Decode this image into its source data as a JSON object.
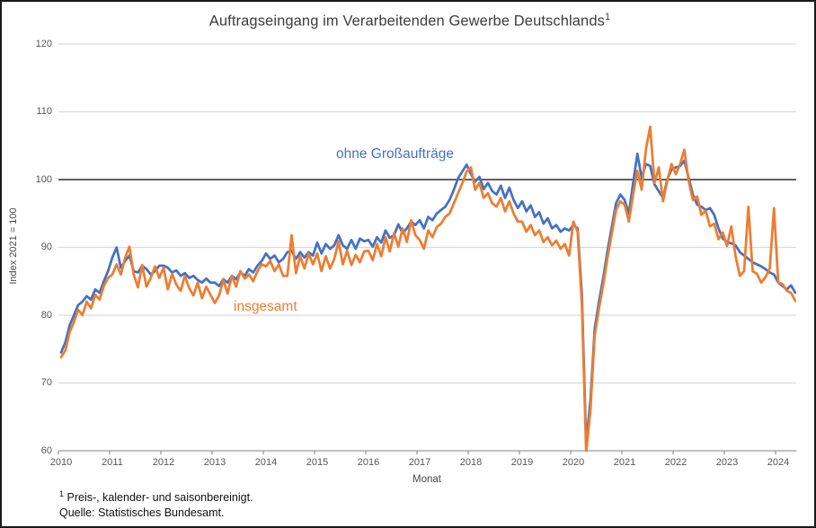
{
  "figure": {
    "title_text": "Auftragseingang im Verarbeitenden Gewerbe Deutschlands",
    "title_sup": "1",
    "footnote1_sup": "1",
    "footnote1_text": " Preis-, kalender- und saisonbereinigt.",
    "footnote2_text": "Quelle: Statistisches Bundesamt."
  },
  "colors": {
    "series_blue": "#4472C4",
    "series_orange": "#ED7D31",
    "gridline": "#DADADA",
    "highlight_gridline": "#000000",
    "axis": "#9B9B9B",
    "tick_text": "#555555",
    "title_text": "#3D3D3D"
  },
  "chart_data": {
    "type": "line",
    "title": "Auftragseingang im Verarbeitenden Gewerbe Deutschlands¹",
    "xlabel": "Monat",
    "ylabel": "Index 2021 = 100",
    "ylim": [
      60,
      120
    ],
    "y_ticks": [
      60,
      70,
      80,
      90,
      100,
      110,
      120
    ],
    "highlight_gridline_at": 100,
    "grid": "horizontal",
    "x_range": "2010-01 to 2024-05",
    "frequency": "monthly",
    "x_tick_labels": [
      "2010",
      "2011",
      "2012",
      "2013",
      "2014",
      "2015",
      "2016",
      "2017",
      "2018",
      "2019",
      "2020",
      "2021",
      "2022",
      "2023",
      "2024"
    ],
    "annotations": [
      {
        "text": "ohne Großaufträge",
        "color": "#4472C4",
        "series": "ohne Großaufträge"
      },
      {
        "text": "insgesamt",
        "color": "#ED7D31",
        "series": "insgesamt"
      }
    ],
    "series": [
      {
        "name": "ohne Großaufträge",
        "color": "#4472C4",
        "values": [
          74.5,
          76.0,
          78.5,
          80.0,
          81.5,
          82.0,
          82.8,
          82.3,
          83.8,
          83.3,
          85.0,
          86.5,
          88.5,
          90.0,
          87.0,
          88.0,
          88.8,
          86.5,
          86.3,
          87.3,
          86.8,
          86.0,
          86.5,
          87.3,
          87.3,
          87.0,
          86.3,
          86.6,
          85.8,
          86.2,
          85.5,
          85.8,
          85.2,
          84.8,
          85.4,
          84.8,
          84.8,
          84.3,
          85.3,
          84.8,
          85.8,
          85.3,
          86.3,
          85.8,
          86.8,
          86.3,
          87.3,
          88.0,
          89.1,
          88.3,
          88.8,
          87.8,
          88.3,
          89.3,
          89.5,
          88.3,
          89.3,
          88.5,
          89.3,
          88.8,
          90.7,
          89.1,
          90.5,
          89.8,
          90.3,
          91.8,
          90.3,
          89.8,
          91.1,
          89.8,
          91.3,
          90.9,
          91.1,
          90.1,
          91.5,
          90.7,
          92.5,
          91.4,
          91.8,
          93.4,
          92.1,
          92.8,
          93.8,
          93.3,
          94.0,
          92.8,
          94.5,
          94.0,
          95.0,
          95.5,
          96.0,
          97.0,
          98.5,
          100.2,
          101.2,
          102.2,
          100.8,
          99.7,
          100.4,
          98.6,
          99.5,
          98.3,
          97.8,
          99.1,
          97.3,
          98.8,
          97.0,
          95.8,
          96.8,
          95.3,
          96.2,
          94.5,
          95.2,
          93.5,
          94.3,
          92.8,
          93.3,
          92.3,
          92.8,
          92.5,
          93.3,
          92.8,
          83.0,
          61.0,
          67.5,
          78.0,
          82.0,
          85.5,
          89.5,
          93.0,
          96.5,
          97.8,
          97.0,
          95.0,
          99.5,
          103.8,
          100.3,
          102.3,
          102.0,
          99.3,
          98.3,
          97.3,
          100.0,
          101.5,
          101.8,
          102.0,
          102.8,
          100.3,
          97.8,
          96.3,
          96.0,
          95.5,
          95.8,
          94.8,
          92.8,
          91.3,
          90.8,
          90.6,
          90.3,
          89.3,
          88.8,
          88.3,
          87.8,
          87.5,
          87.2,
          86.8,
          86.3,
          86.0,
          84.8,
          84.3,
          83.8,
          84.4,
          83.3
        ]
      },
      {
        "name": "insgesamt",
        "color": "#ED7D31",
        "values": [
          73.8,
          74.8,
          77.5,
          79.0,
          80.8,
          80.0,
          82.0,
          81.0,
          83.0,
          82.3,
          84.3,
          85.5,
          86.0,
          87.5,
          86.0,
          88.5,
          90.1,
          86.0,
          84.1,
          87.4,
          84.2,
          85.5,
          87.2,
          85.5,
          87.0,
          83.8,
          86.1,
          84.5,
          83.6,
          85.8,
          84.0,
          82.9,
          84.8,
          82.5,
          84.2,
          83.0,
          81.8,
          82.9,
          85.2,
          83.2,
          85.8,
          84.2,
          86.5,
          85.4,
          86.0,
          85.0,
          86.5,
          87.5,
          87.2,
          88.0,
          86.5,
          87.5,
          85.8,
          85.8,
          91.8,
          86.2,
          88.7,
          86.9,
          89.1,
          87.5,
          89.1,
          86.5,
          88.7,
          86.9,
          88.3,
          90.9,
          87.5,
          89.5,
          87.4,
          88.9,
          87.8,
          89.4,
          89.5,
          88.1,
          90.5,
          88.7,
          91.5,
          89.4,
          92.1,
          90.1,
          92.8,
          90.8,
          94.0,
          91.8,
          91.1,
          89.8,
          92.5,
          91.5,
          93.0,
          93.5,
          94.5,
          95.0,
          96.5,
          98.0,
          99.5,
          101.2,
          101.8,
          98.5,
          99.5,
          97.3,
          98.0,
          96.5,
          96.0,
          97.3,
          95.3,
          96.8,
          95.0,
          93.8,
          93.8,
          92.3,
          93.3,
          91.8,
          92.5,
          90.8,
          91.5,
          90.3,
          91.0,
          89.8,
          90.5,
          88.8,
          93.8,
          92.3,
          81.5,
          59.8,
          66.0,
          77.0,
          81.0,
          84.5,
          88.5,
          92.0,
          95.5,
          96.8,
          96.3,
          93.8,
          97.8,
          101.3,
          98.5,
          104.5,
          107.8,
          99.5,
          101.8,
          96.8,
          99.8,
          102.3,
          100.8,
          102.3,
          104.4,
          99.8,
          97.0,
          97.5,
          94.8,
          95.4,
          93.1,
          93.5,
          91.2,
          92.2,
          90.2,
          93.1,
          88.7,
          85.8,
          86.5,
          96.0,
          86.5,
          86.1,
          84.8,
          85.6,
          86.9,
          95.8,
          84.8,
          84.6,
          83.6,
          83.3,
          82.1
        ]
      }
    ]
  }
}
